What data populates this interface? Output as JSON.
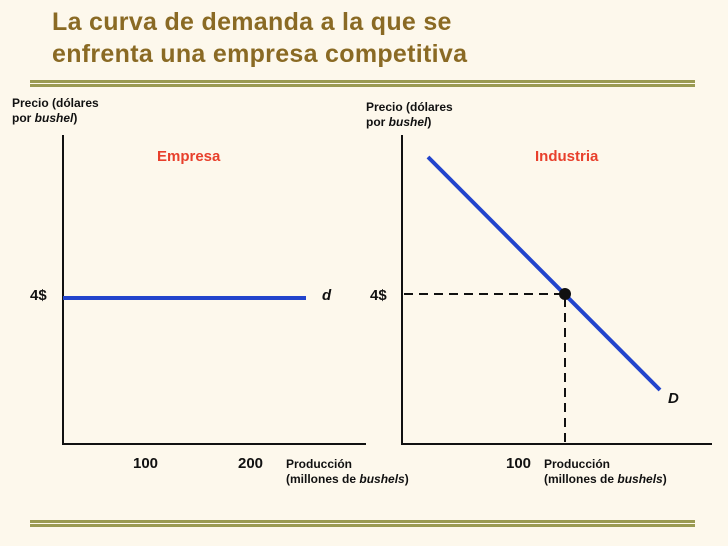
{
  "title_line1": "La curva de demanda a la que se",
  "title_line2": "enfrenta una empresa competitiva",
  "firm": {
    "panel_label": "Empresa",
    "ylabel_line1": "Precio (dólares",
    "ylabel_line2_prefix": "por ",
    "ylabel_line2_italic": "bushel",
    "ylabel_line2_suffix": ")",
    "price_label": "4$",
    "curve_label": "d",
    "ticks": [
      "100",
      "200"
    ],
    "xlabel_line1": "Producción",
    "xlabel_line2_prefix": "(millones de ",
    "xlabel_line2_italic": "bushels",
    "xlabel_line2_suffix": ")"
  },
  "industry": {
    "panel_label": "Industria",
    "ylabel_line1": "Precio (dólares",
    "ylabel_line2_prefix": "por ",
    "ylabel_line2_italic": "bushel",
    "ylabel_line2_suffix": ")",
    "price_label": "4$",
    "curve_label": "D",
    "tick": "100",
    "xlabel_line1": "Producción",
    "xlabel_line2_prefix": "(millones de ",
    "xlabel_line2_italic": "bushels",
    "xlabel_line2_suffix": ")"
  },
  "colors": {
    "title": "#8a6a24",
    "rule": "#9a9a52",
    "curve": "#2244cc",
    "panel_label": "#e8402c"
  }
}
